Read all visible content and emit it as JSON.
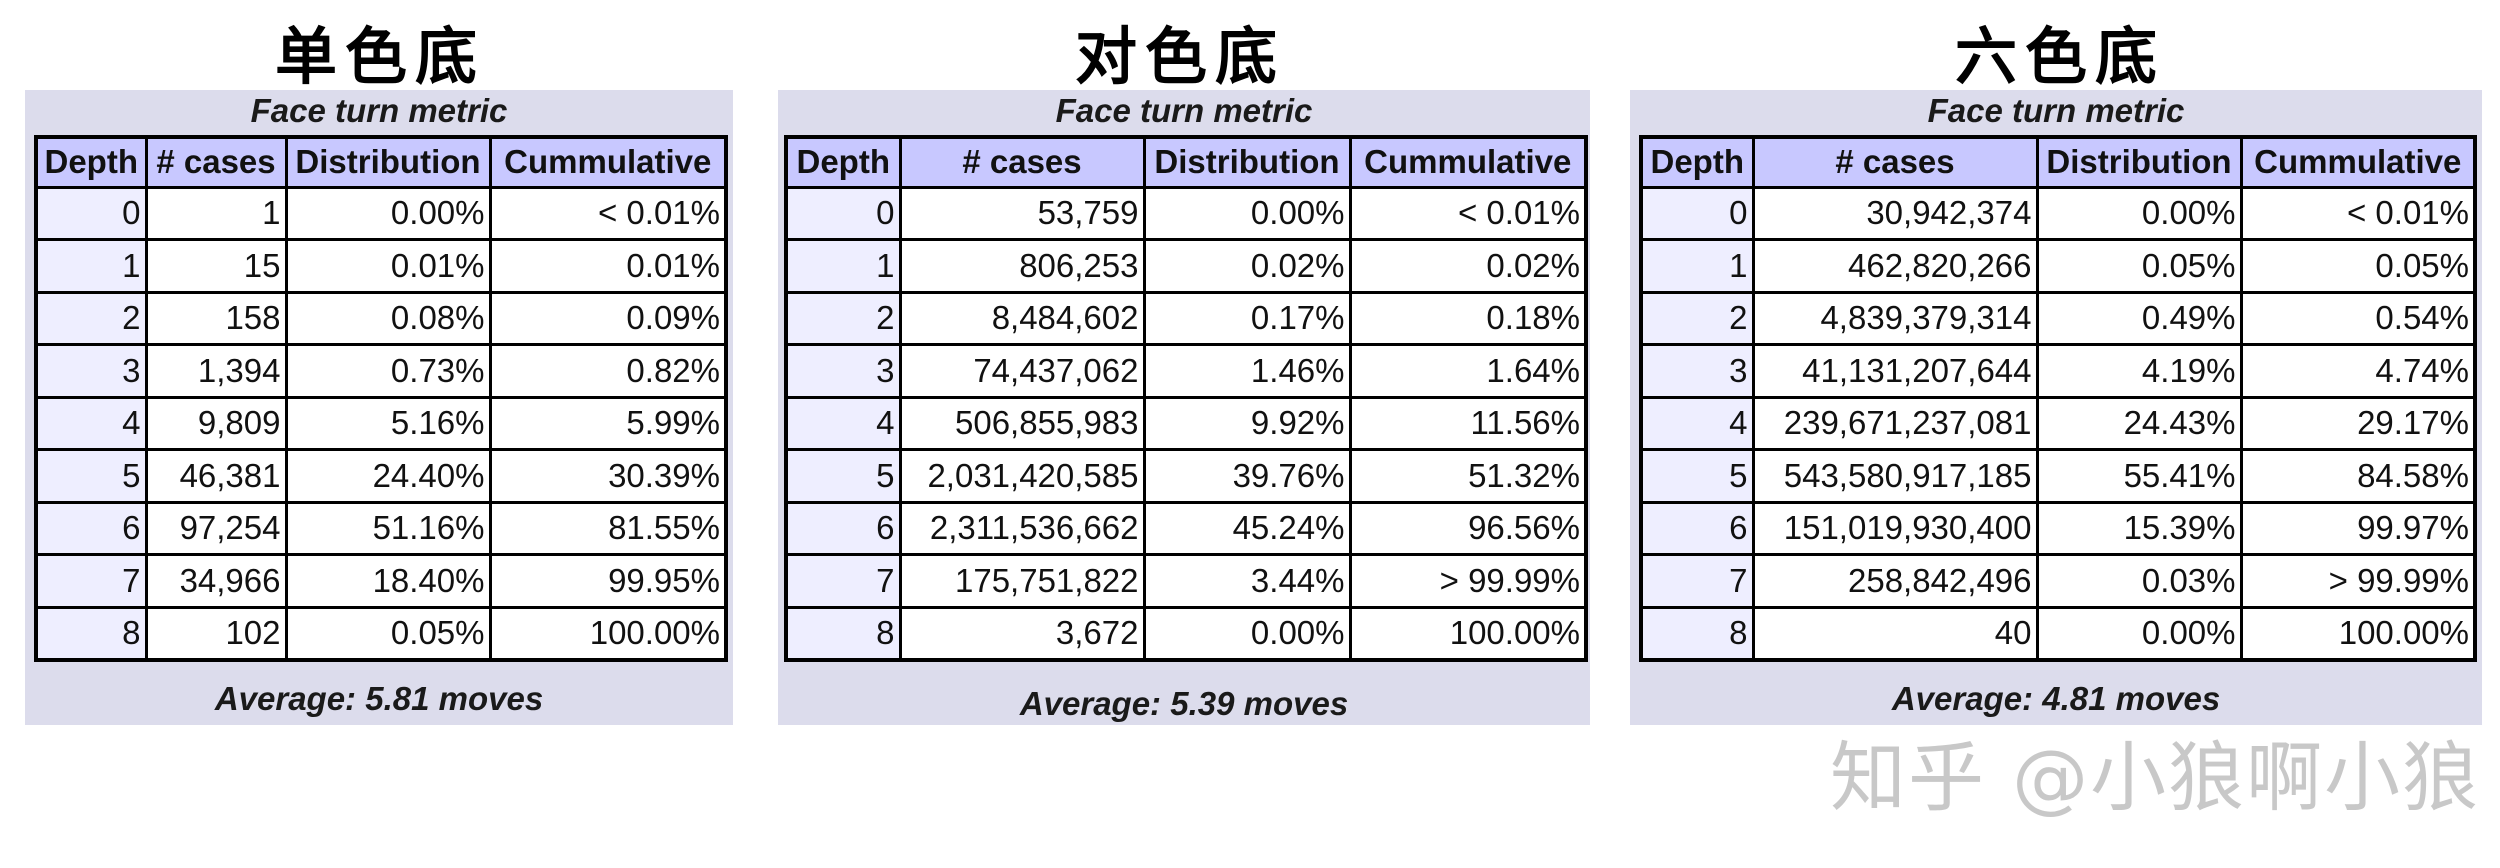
{
  "tables": [
    {
      "title": "单色底",
      "metric": "Face turn metric",
      "headers": [
        "Depth",
        "# cases",
        "Distribution",
        "Cummulative"
      ],
      "rows": [
        [
          "0",
          "1",
          "0.00%",
          "< 0.01%"
        ],
        [
          "1",
          "15",
          "0.01%",
          "0.01%"
        ],
        [
          "2",
          "158",
          "0.08%",
          "0.09%"
        ],
        [
          "3",
          "1,394",
          "0.73%",
          "0.82%"
        ],
        [
          "4",
          "9,809",
          "5.16%",
          "5.99%"
        ],
        [
          "5",
          "46,381",
          "24.40%",
          "30.39%"
        ],
        [
          "6",
          "97,254",
          "51.16%",
          "81.55%"
        ],
        [
          "7",
          "34,966",
          "18.40%",
          "99.95%"
        ],
        [
          "8",
          "102",
          "0.05%",
          "100.00%"
        ]
      ],
      "average": "Average: 5.81 moves"
    },
    {
      "title": "对色底",
      "metric": "Face turn metric",
      "headers": [
        "Depth",
        "# cases",
        "Distribution",
        "Cummulative"
      ],
      "rows": [
        [
          "0",
          "53,759",
          "0.00%",
          "< 0.01%"
        ],
        [
          "1",
          "806,253",
          "0.02%",
          "0.02%"
        ],
        [
          "2",
          "8,484,602",
          "0.17%",
          "0.18%"
        ],
        [
          "3",
          "74,437,062",
          "1.46%",
          "1.64%"
        ],
        [
          "4",
          "506,855,983",
          "9.92%",
          "11.56%"
        ],
        [
          "5",
          "2,031,420,585",
          "39.76%",
          "51.32%"
        ],
        [
          "6",
          "2,311,536,662",
          "45.24%",
          "96.56%"
        ],
        [
          "7",
          "175,751,822",
          "3.44%",
          "> 99.99%"
        ],
        [
          "8",
          "3,672",
          "0.00%",
          "100.00%"
        ]
      ],
      "average": "Average: 5.39 moves"
    },
    {
      "title": "六色底",
      "metric": "Face turn metric",
      "headers": [
        "Depth",
        "# cases",
        "Distribution",
        "Cummulative"
      ],
      "rows": [
        [
          "0",
          "30,942,374",
          "0.00%",
          "< 0.01%"
        ],
        [
          "1",
          "462,820,266",
          "0.05%",
          "0.05%"
        ],
        [
          "2",
          "4,839,379,314",
          "0.49%",
          "0.54%"
        ],
        [
          "3",
          "41,131,207,644",
          "4.19%",
          "4.74%"
        ],
        [
          "4",
          "239,671,237,081",
          "24.43%",
          "29.17%"
        ],
        [
          "5",
          "543,580,917,185",
          "55.41%",
          "84.58%"
        ],
        [
          "6",
          "151,019,930,400",
          "15.39%",
          "99.97%"
        ],
        [
          "7",
          "258,842,496",
          "0.03%",
          "> 99.99%"
        ],
        [
          "8",
          "40",
          "0.00%",
          "100.00%"
        ]
      ],
      "average": "Average: 4.81 moves"
    }
  ],
  "watermark": "知乎 @小狼啊小狼"
}
